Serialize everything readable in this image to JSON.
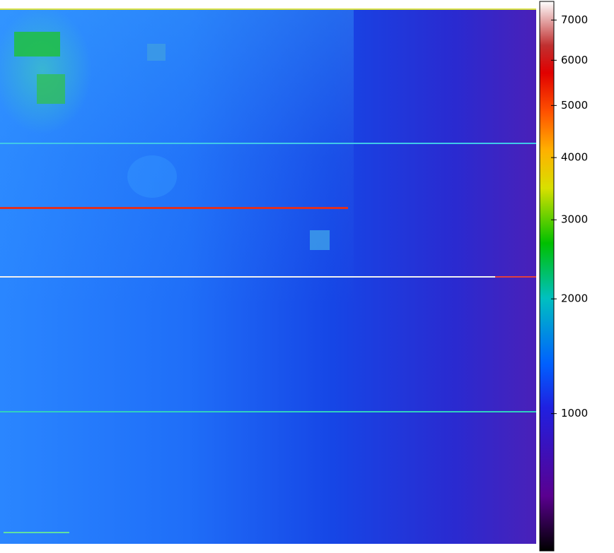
{
  "chart_data": {
    "type": "image",
    "clim": [
      340,
      7500
    ],
    "color_scale": {
      "type": "power",
      "exponent": 0.3
    },
    "cticks": [
      1000,
      2000,
      3000,
      4000,
      5000,
      6000,
      7000
    ]
  }
}
